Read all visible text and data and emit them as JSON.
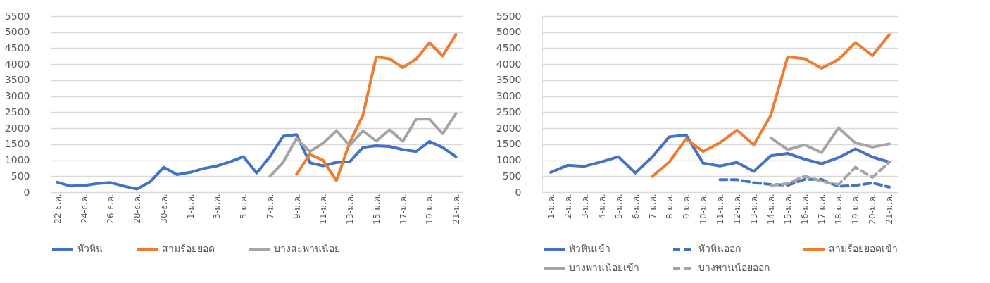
{
  "chart_data": [
    {
      "type": "line",
      "categories": [
        "22-ธ.ค.",
        null,
        "24-ธ.ค.",
        null,
        "26-ธ.ค.",
        null,
        "28-ธ.ค.",
        null,
        "30-ธ.ค.",
        null,
        "1-ม.ค.",
        null,
        "3-ม.ค.",
        null,
        "5-ม.ค.",
        null,
        "7-ม.ค.",
        null,
        "9-ม.ค.",
        null,
        "11-ม.ค.",
        null,
        "13-ม.ค.",
        null,
        "15-ม.ค.",
        null,
        "17-ม.ค.",
        null,
        "19-ม.ค.",
        null,
        "21-ม.ค."
      ],
      "series": [
        {
          "name": "หัวหิน",
          "color": "#4472c4",
          "values": [
            310,
            190,
            210,
            270,
            300,
            190,
            100,
            330,
            780,
            550,
            620,
            740,
            820,
            950,
            1110,
            600,
            1110,
            1750,
            1800,
            920,
            825,
            930,
            950,
            1400,
            1450,
            1430,
            1330,
            1270,
            1590,
            1400,
            1110
          ]
        },
        {
          "name": "สามร้อยยอด",
          "color": "#ed7d31",
          "values": [
            null,
            null,
            null,
            null,
            null,
            null,
            null,
            null,
            null,
            null,
            null,
            null,
            null,
            null,
            null,
            null,
            null,
            null,
            560,
            1180,
            1000,
            360,
            1550,
            2410,
            4230,
            4170,
            3890,
            4160,
            4670,
            4260,
            4930
          ]
        },
        {
          "name": "บางสะพานน้อย",
          "color": "#a5a5a5",
          "values": [
            null,
            null,
            null,
            null,
            null,
            null,
            null,
            null,
            null,
            null,
            null,
            null,
            null,
            null,
            null,
            null,
            490,
            940,
            1680,
            1270,
            1530,
            1920,
            1460,
            1920,
            1600,
            1950,
            1590,
            2280,
            2280,
            1830,
            2460
          ]
        }
      ],
      "ylim": [
        0,
        5500
      ],
      "yticks": [
        0,
        500,
        1000,
        1500,
        2000,
        2500,
        3000,
        3500,
        4000,
        4500,
        5000,
        5500
      ],
      "grid": "y",
      "legend": "bottom",
      "line_style": "solid"
    },
    {
      "type": "line",
      "categories": [
        "1-ม.ค.",
        "2-ม.ค.",
        "3-ม.ค.",
        "4-ม.ค.",
        "5-ม.ค.",
        "6-ม.ค.",
        "7-ม.ค.",
        "8-ม.ค.",
        "9-ม.ค.",
        "10-ม.ค.",
        "11-ม.ค.",
        "12-ม.ค.",
        "13-ม.ค.",
        "14-ม.ค.",
        "15-ม.ค.",
        "16-ม.ค.",
        "17-ม.ค.",
        "18-ม.ค.",
        "19-ม.ค.",
        "20-ม.ค.",
        "21-ม.ค."
      ],
      "series": [
        {
          "name": "หัวหินเข้า",
          "color": "#4472c4",
          "line_style": "solid",
          "values": [
            620,
            840,
            810,
            950,
            1110,
            600,
            1100,
            1730,
            1790,
            910,
            820,
            930,
            650,
            1140,
            1210,
            1030,
            890,
            1080,
            1350,
            1100,
            940
          ]
        },
        {
          "name": "หัวหินออก",
          "color": "#4472c4",
          "line_style": "dashed",
          "values": [
            null,
            null,
            null,
            null,
            null,
            null,
            null,
            null,
            null,
            null,
            390,
            390,
            300,
            240,
            220,
            400,
            400,
            180,
            210,
            290,
            160
          ]
        },
        {
          "name": "สามร้อยยอดเข้า",
          "color": "#ed7d31",
          "line_style": "solid",
          "values": [
            null,
            null,
            null,
            null,
            null,
            null,
            490,
            940,
            1670,
            1270,
            1550,
            1940,
            1480,
            2400,
            4230,
            4170,
            3870,
            4150,
            4680,
            4270,
            4920
          ]
        },
        {
          "name": "บางพานน้อยเข้า",
          "color": "#a5a5a5",
          "line_style": "solid",
          "values": [
            null,
            null,
            null,
            null,
            null,
            null,
            null,
            null,
            null,
            null,
            null,
            null,
            null,
            1700,
            1330,
            1480,
            1240,
            2010,
            1540,
            1410,
            1510
          ]
        },
        {
          "name": "บางพานน้อยออก",
          "color": "#a5a5a5",
          "line_style": "dashed",
          "values": [
            null,
            null,
            null,
            null,
            null,
            null,
            null,
            null,
            null,
            null,
            null,
            null,
            null,
            210,
            270,
            500,
            340,
            240,
            780,
            460,
            940
          ]
        }
      ],
      "ylim": [
        0,
        5500
      ],
      "yticks": [
        0,
        500,
        1000,
        1500,
        2000,
        2500,
        3000,
        3500,
        4000,
        4500,
        5000,
        5500
      ],
      "grid": "y",
      "legend": "bottom"
    }
  ]
}
